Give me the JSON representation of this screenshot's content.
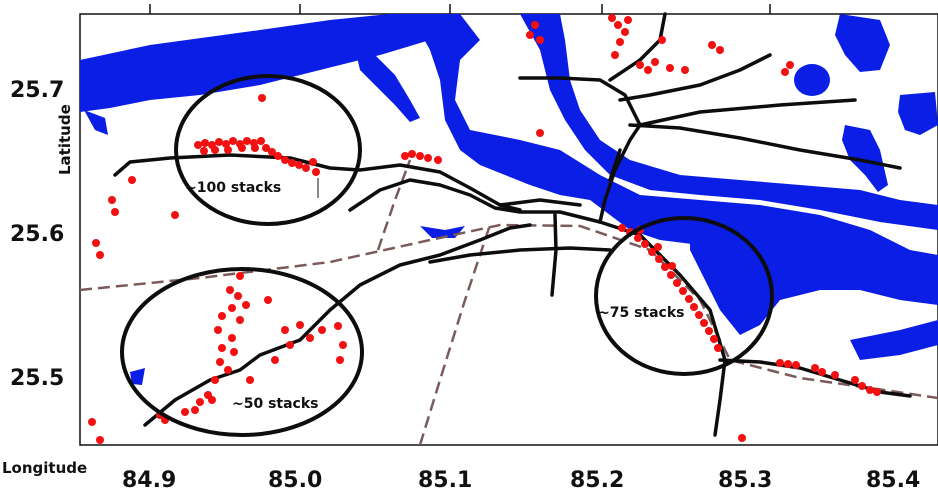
{
  "axes": {
    "x_title": "Longitude",
    "y_title": "Latitude",
    "x_ticks": [
      "84.9",
      "85.0",
      "85.1",
      "85.2",
      "85.3",
      "85.4"
    ],
    "y_ticks": [
      "25.7",
      "25.6",
      "25.5"
    ]
  },
  "annotations": {
    "nw": "~100 stacks",
    "sw": "~50 stacks",
    "east": "~75 stacks"
  },
  "colors": {
    "water": "#0a1ee6",
    "stacks": "#f21010",
    "roads": "#0d0d0d",
    "railway": "#7a5a5a",
    "circles": "#0d0d0d"
  }
}
